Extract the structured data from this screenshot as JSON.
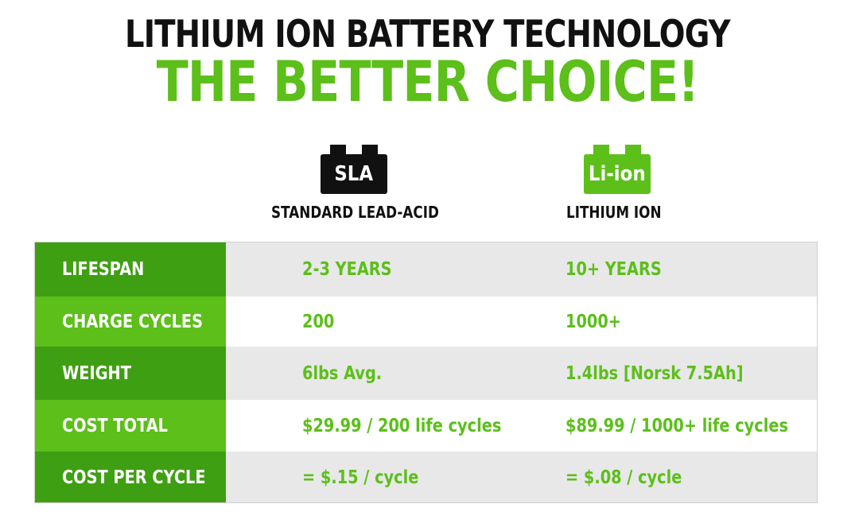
{
  "title": {
    "line1": "LITHIUM ION BATTERY TECHNOLOGY",
    "line2": "THE BETTER CHOICE!"
  },
  "colors": {
    "accent_green": "#5cbf1a",
    "dark_green": "#3f9f12",
    "black": "#111111",
    "row_grey": "#e8e8e8",
    "row_white": "#ffffff"
  },
  "columns": [
    {
      "icon": "battery-icon",
      "badge": "SLA",
      "label": "STANDARD LEAD-ACID",
      "badge_color": "#111111"
    },
    {
      "icon": "battery-icon",
      "badge": "Li-ion",
      "label": "LITHIUM ION",
      "badge_color": "#5cbf1a"
    }
  ],
  "rows": [
    {
      "label": "LIFESPAN",
      "sla": "2-3 YEARS",
      "liion": "10+ YEARS"
    },
    {
      "label": "CHARGE CYCLES",
      "sla": "200",
      "liion": "1000+"
    },
    {
      "label": "WEIGHT",
      "sla": "6lbs Avg.",
      "liion": "1.4lbs [Norsk 7.5Ah]"
    },
    {
      "label": "COST TOTAL",
      "sla": "$29.99 / 200 life cycles",
      "liion": "$89.99 / 1000+ life cycles"
    },
    {
      "label": "COST PER CYCLE",
      "sla": "= $.15 / cycle",
      "liion": "= $.08 / cycle"
    }
  ]
}
